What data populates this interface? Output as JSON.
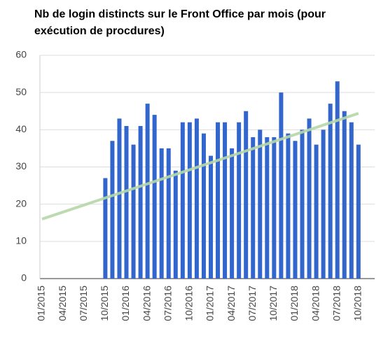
{
  "chart_data": {
    "type": "bar",
    "title": [
      "Nb de login distincts sur le Front Office par mois (pour",
      "exécution de procdures)"
    ],
    "categories": [
      "01/2015",
      null,
      null,
      "04/2015",
      null,
      null,
      "07/2015",
      null,
      null,
      "10/2015",
      null,
      null,
      "01/2016",
      null,
      null,
      "04/2016",
      null,
      null,
      "07/2016",
      null,
      null,
      "10/2016",
      null,
      null,
      "01/2017",
      null,
      null,
      "04/2017",
      null,
      null,
      "07/2017",
      null,
      null,
      "10/2017",
      null,
      null,
      "01/2018",
      null,
      null,
      "04/2018",
      null,
      null,
      "07/2018",
      null,
      null,
      "10/2018"
    ],
    "values": [
      null,
      null,
      null,
      null,
      null,
      null,
      null,
      null,
      null,
      27,
      37,
      43,
      41,
      36,
      41,
      47,
      44,
      35,
      35,
      29,
      42,
      42,
      43,
      39,
      33,
      42,
      42,
      35,
      42,
      45,
      38,
      40,
      38,
      38,
      50,
      39,
      37,
      40,
      43,
      36,
      40,
      47,
      53,
      45,
      42,
      36
    ],
    "color": "#3366cc",
    "trendline": {
      "color": "#b6d7a8",
      "values": [
        16,
        44.4
      ]
    },
    "ylim": [
      0,
      60
    ],
    "yticks": [
      0,
      10,
      20,
      30,
      40,
      50,
      60
    ],
    "grid": true
  }
}
